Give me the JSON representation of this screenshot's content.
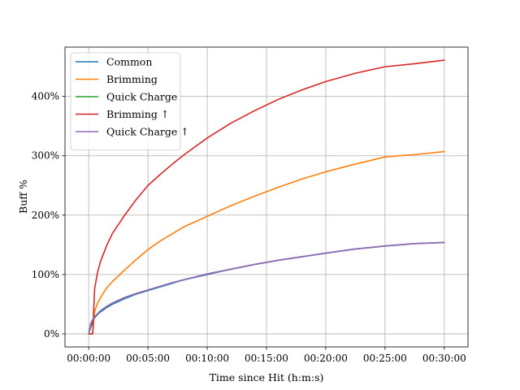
{
  "chart_data": {
    "type": "line",
    "title": "",
    "xlabel": "Time since Hit (h:m:s)",
    "ylabel": "Buff %",
    "x_unit": "seconds",
    "xlim": [
      -120,
      1920
    ],
    "ylim": [
      -22,
      483
    ],
    "x_ticks": [
      {
        "value": 0,
        "label": "00:00:00"
      },
      {
        "value": 300,
        "label": "00:05:00"
      },
      {
        "value": 600,
        "label": "00:10:00"
      },
      {
        "value": 900,
        "label": "00:15:00"
      },
      {
        "value": 1200,
        "label": "00:20:00"
      },
      {
        "value": 1500,
        "label": "00:25:00"
      },
      {
        "value": 1800,
        "label": "00:30:00"
      }
    ],
    "y_ticks": [
      {
        "value": 0,
        "label": "0%"
      },
      {
        "value": 100,
        "label": "100%"
      },
      {
        "value": 200,
        "label": "200%"
      },
      {
        "value": 300,
        "label": "300%"
      },
      {
        "value": 400,
        "label": "400%"
      }
    ],
    "grid": true,
    "legend_position": "top-left",
    "x": [
      0,
      10,
      20,
      30,
      45,
      60,
      90,
      120,
      180,
      240,
      300,
      360,
      420,
      480,
      600,
      720,
      840,
      960,
      1080,
      1200,
      1350,
      1500,
      1650,
      1800
    ],
    "series": [
      {
        "name": "Common",
        "color": "#1f77b4",
        "values": [
          0,
          11,
          20,
          27,
          33,
          37,
          44,
          50,
          59,
          67,
          73,
          79,
          85,
          91,
          100,
          109,
          117,
          124,
          130,
          136,
          143,
          148,
          152,
          154
        ]
      },
      {
        "name": "Brimming",
        "color": "#ff7f0e",
        "values": [
          0,
          0,
          0,
          38,
          52,
          61,
          77,
          88,
          107,
          125,
          142,
          156,
          168,
          180,
          198,
          216,
          232,
          247,
          261,
          273,
          286,
          298,
          302,
          307
        ]
      },
      {
        "name": "Quick Charge",
        "color": "#2ca02c",
        "values": [
          0,
          17,
          24,
          29,
          34,
          39,
          46,
          52,
          61,
          68,
          74,
          80,
          86,
          91,
          101,
          109,
          117,
          124,
          130,
          136,
          143,
          148,
          152,
          154
        ]
      },
      {
        "name": "Brimming ↑",
        "color": "#d62728",
        "values": [
          0,
          0,
          0,
          76,
          104,
          122,
          148,
          169,
          199,
          226,
          250,
          268,
          285,
          301,
          330,
          355,
          376,
          395,
          411,
          425,
          439,
          450,
          455,
          461
        ]
      },
      {
        "name": "Quick Charge ↑",
        "color": "#9467bd",
        "values": [
          0,
          17,
          24,
          29,
          34,
          39,
          46,
          52,
          61,
          68,
          74,
          80,
          86,
          91,
          101,
          109,
          117,
          124,
          130,
          136,
          143,
          148,
          152,
          154
        ]
      }
    ]
  }
}
